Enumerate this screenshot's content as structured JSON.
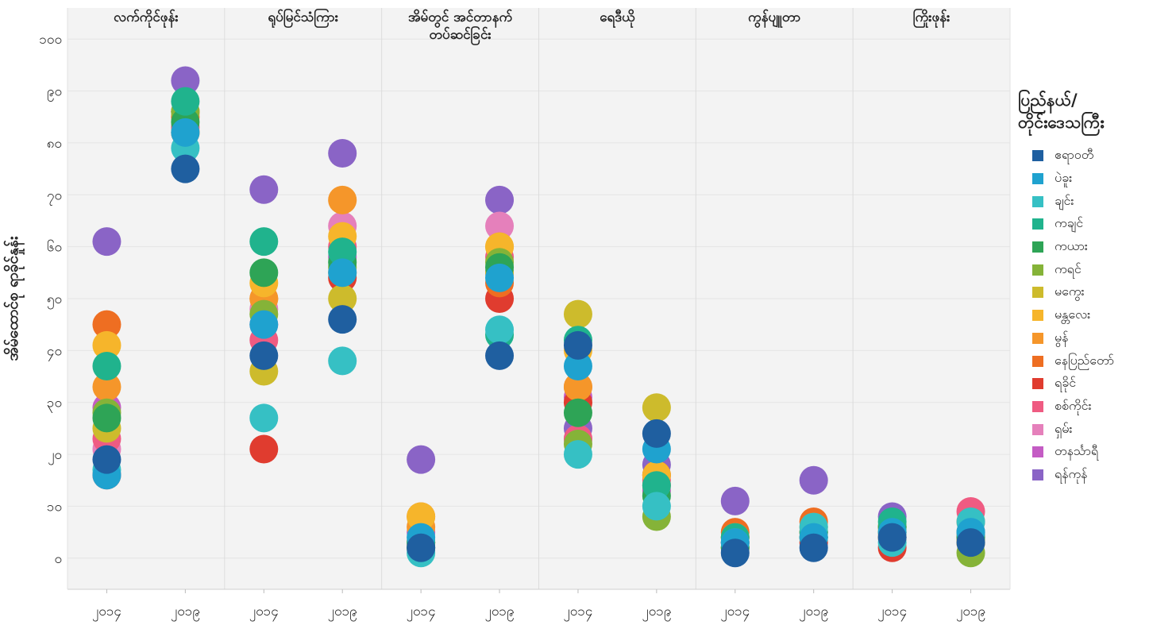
{
  "chart_data": {
    "type": "scatter",
    "ylabel": "အိမ်ထောင်စု ရာခိုင်နှုန်း",
    "ylim": [
      -6,
      106
    ],
    "yticks": [
      {
        "value": 0,
        "label": "၀"
      },
      {
        "value": 10,
        "label": "၁၀"
      },
      {
        "value": 20,
        "label": "၂၀"
      },
      {
        "value": 30,
        "label": "၃၀"
      },
      {
        "value": 40,
        "label": "၄၀"
      },
      {
        "value": 50,
        "label": "၅၀"
      },
      {
        "value": 60,
        "label": "၆၀"
      },
      {
        "value": 70,
        "label": "၇၀"
      },
      {
        "value": 80,
        "label": "၈၀"
      },
      {
        "value": 90,
        "label": "၉၀"
      },
      {
        "value": 100,
        "label": "၁၀၀"
      }
    ],
    "years": [
      "၂၀၁၄",
      "၂၀၁၉"
    ],
    "legend_title": "ပြည်နယ်/\nတိုင်းဒေသကြီး",
    "legend_position": "right",
    "grid": true,
    "series": [
      {
        "name": "ဧရာဝတီ",
        "color": "#1f5fa0"
      },
      {
        "name": "ပဲခူး",
        "color": "#1fa2cf"
      },
      {
        "name": "ချင်း",
        "color": "#36c0c4"
      },
      {
        "name": "ကချင်",
        "color": "#20b38d"
      },
      {
        "name": "ကယား",
        "color": "#2ea456"
      },
      {
        "name": "ကရင်",
        "color": "#85b338"
      },
      {
        "name": "မကွေး",
        "color": "#cdbb2c"
      },
      {
        "name": "မန္တလေး",
        "color": "#f6b52b"
      },
      {
        "name": "မွန်",
        "color": "#f5962a"
      },
      {
        "name": "နေပြည်တော်",
        "color": "#ee6e22"
      },
      {
        "name": "ရခိုင်",
        "color": "#e03c2f"
      },
      {
        "name": "စစ်ကိုင်း",
        "color": "#ef5b82"
      },
      {
        "name": "ရှမ်း",
        "color": "#e580bb"
      },
      {
        "name": "တနင်္သာရီ",
        "color": "#c45cc4"
      },
      {
        "name": "ရန်ကုန်",
        "color": "#8a64c6"
      }
    ],
    "panels": [
      {
        "title": "လက်ကိုင်ဖုန်း",
        "values": [
          [
            19,
            16,
            17,
            37,
            27,
            28,
            25,
            41,
            33,
            45,
            16,
            23,
            21,
            29,
            61
          ],
          [
            75,
            82,
            79,
            88,
            84,
            86,
            82,
            86,
            86,
            85,
            82,
            83,
            86,
            86,
            92
          ]
        ]
      },
      {
        "title": "ရုပ်မြင်သံကြား",
        "values": [
          [
            39,
            45,
            27,
            61,
            55,
            47,
            36,
            53,
            50,
            50,
            21,
            42,
            48,
            45,
            71
          ],
          [
            46,
            55,
            38,
            59,
            57,
            56,
            50,
            62,
            69,
            55,
            54,
            60,
            64,
            58,
            78
          ]
        ]
      },
      {
        "title": "အိမ်တွင် အင်တာနက်\nတပ်ဆင်ခြင်း",
        "values": [
          [
            2,
            4,
            1,
            3,
            2,
            2,
            3,
            8,
            6,
            8,
            3,
            3,
            3,
            5,
            19
          ],
          [
            39,
            54,
            44,
            43,
            56,
            57,
            55,
            60,
            60,
            53,
            50,
            58,
            64,
            55,
            69
          ]
        ]
      },
      {
        "title": "ရေဒီယို",
        "values": [
          [
            41,
            37,
            20,
            42,
            28,
            22,
            47,
            40,
            33,
            33,
            30,
            23,
            23,
            31,
            25
          ],
          [
            24,
            21,
            10,
            14,
            12,
            8,
            29,
            16,
            14,
            16,
            16,
            15,
            14,
            13,
            18
          ]
        ]
      },
      {
        "title": "ကွန်ပျူတာ",
        "values": [
          [
            1,
            3,
            3,
            4,
            2,
            2,
            2,
            4,
            4,
            5,
            3,
            3,
            4,
            4,
            11
          ],
          [
            2,
            4,
            6,
            5,
            4,
            4,
            5,
            5,
            6,
            7,
            3,
            5,
            5,
            4,
            15
          ]
        ]
      },
      {
        "title": "ကြိုးဖုန်း",
        "values": [
          [
            4,
            5,
            3,
            7,
            6,
            5,
            4,
            6,
            6,
            5,
            2,
            4,
            6,
            4,
            8
          ],
          [
            3,
            5,
            7,
            5,
            4,
            1,
            3,
            3,
            4,
            7,
            3,
            9,
            5,
            4,
            5
          ]
        ]
      }
    ]
  }
}
